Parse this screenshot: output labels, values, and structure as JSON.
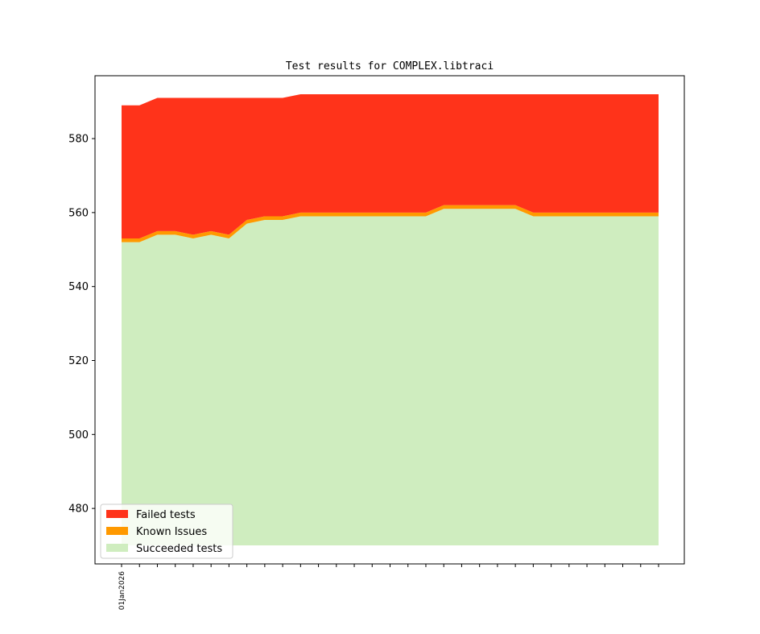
{
  "chart_data": {
    "type": "area",
    "title": "Test results for COMPLEX.libtraci",
    "xlabel": "",
    "ylabel": "",
    "x_tick_labels": [
      "01Jan2026"
    ],
    "ylim": [
      465,
      597
    ],
    "y_ticks": [
      480,
      500,
      520,
      540,
      560,
      580
    ],
    "grid": false,
    "legend_position": "lower-left",
    "baseline": 470,
    "series": [
      {
        "name": "Succeeded tests",
        "color": "#cfedbf",
        "values": [
          552,
          552,
          554,
          554,
          553,
          554,
          553,
          557,
          558,
          558,
          559,
          559,
          559,
          559,
          559,
          559,
          559,
          559,
          561,
          561,
          561,
          561,
          561,
          559,
          559,
          559,
          559,
          559,
          559,
          559,
          559
        ]
      },
      {
        "name": "Known Issues",
        "color": "#ff9900",
        "values": [
          1,
          1,
          1,
          1,
          1,
          1,
          1,
          1,
          1,
          1,
          1,
          1,
          1,
          1,
          1,
          1,
          1,
          1,
          1,
          1,
          1,
          1,
          1,
          1,
          1,
          1,
          1,
          1,
          1,
          1,
          1
        ]
      },
      {
        "name": "Failed tests",
        "color": "#ff331a",
        "values": [
          36,
          36,
          36,
          36,
          37,
          36,
          37,
          33,
          32,
          32,
          32,
          32,
          32,
          32,
          32,
          32,
          32,
          32,
          30,
          30,
          30,
          30,
          30,
          32,
          32,
          32,
          32,
          32,
          32,
          32,
          32
        ]
      }
    ]
  }
}
